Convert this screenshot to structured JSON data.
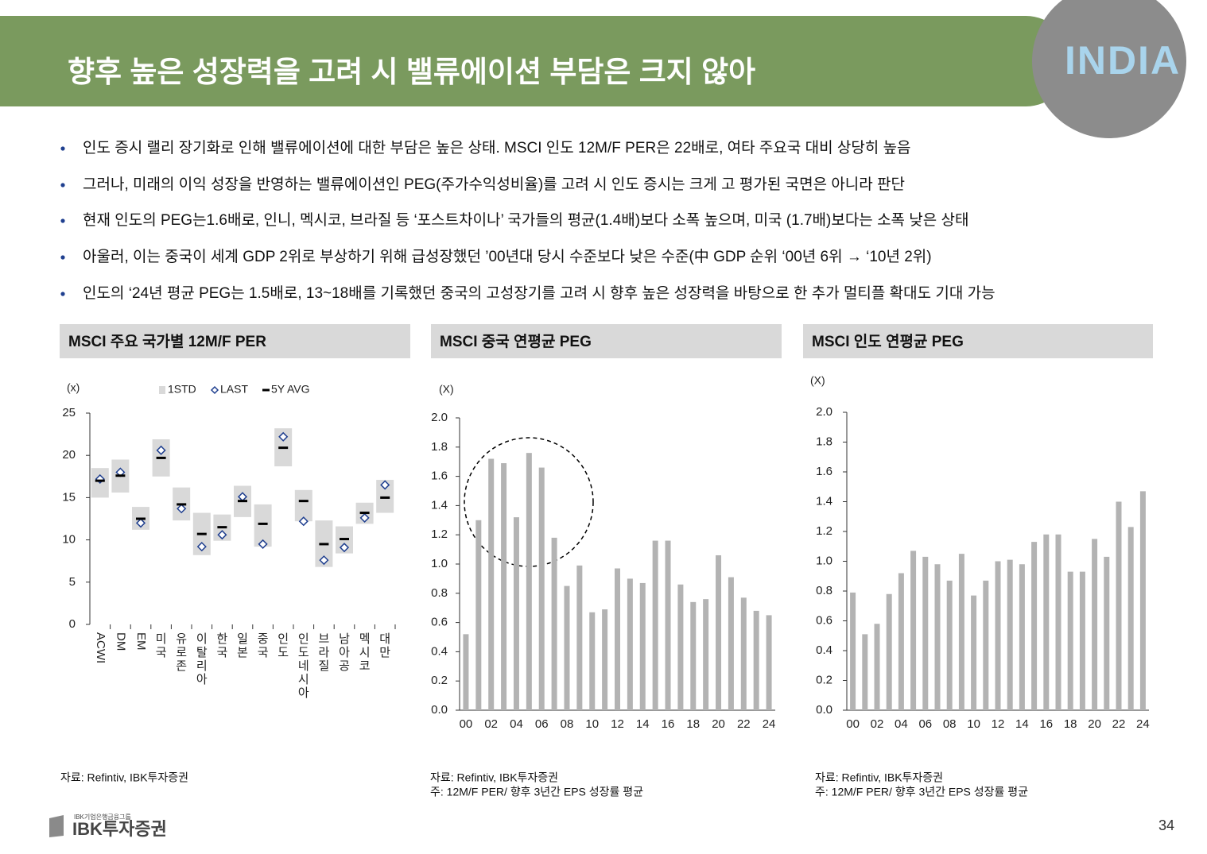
{
  "header": {
    "title": "향후 높은 성장력을 고려 시 밸류에이션 부담은 크지 않아",
    "badge": "INDIA"
  },
  "bullets": [
    "인도 증시 랠리 장기화로 인해 밸류에이션에 대한 부담은 높은 상태. MSCI 인도 12M/F PER은 22배로, 여타 주요국 대비 상당히 높음",
    "그러나, 미래의 이익 성장을 반영하는 밸류에이션인 PEG(주가수익성비율)를 고려 시 인도 증시는 크게 고 평가된 국면은 아니라 판단",
    "현재 인도의 PEG는1.6배로,  인니, 멕시코, 브라질 등 ‘포스트차이나’ 국가들의 평균(1.4배)보다 소폭 높으며, 미국 (1.7배)보다는 소폭 낮은 상태",
    "아울러, 이는 중국이 세계 GDP 2위로 부상하기 위해 급성장했던 ’00년대 당시 수준보다 낮은 수준(中 GDP 순위 ‘00년 6위 → ‘10년 2위)",
    "인도의 ‘24년 평균 PEG는 1.5배로, 13~18배를 기록했던 중국의 고성장기를 고려 시 향후 높은 성장력을 바탕으로 한 추가 멀티플 확대도 기대 가능"
  ],
  "chart_data": [
    {
      "type": "range",
      "title": "MSCI 주요 국가별 12M/F PER",
      "ylabel": "(x)",
      "source": "자료: Refintiv, IBK투자증권",
      "categories": [
        "ACWI",
        "DM",
        "EM",
        "미국",
        "유로존",
        "이탈리아",
        "한국",
        "일본",
        "중국",
        "인도",
        "인도네시아",
        "브라질",
        "남아공",
        "멕시코",
        "대만"
      ],
      "series": [
        {
          "name": "1STD",
          "color": "#d9d9d9",
          "marker": "box",
          "values": [
            [
              15.0,
              18.5
            ],
            [
              15.6,
              19.5
            ],
            [
              11.2,
              13.9
            ],
            [
              17.5,
              21.9
            ],
            [
              12.3,
              16.2
            ],
            [
              8.2,
              13.2
            ],
            [
              9.9,
              13.0
            ],
            [
              12.7,
              16.4
            ],
            [
              9.2,
              14.2
            ],
            [
              18.7,
              23.2
            ],
            [
              12.2,
              15.9
            ],
            [
              6.8,
              12.3
            ],
            [
              8.4,
              11.6
            ],
            [
              11.9,
              14.4
            ],
            [
              13.2,
              17.1
            ]
          ]
        },
        {
          "name": "LAST",
          "color": "#1f3f8f",
          "marker": "diamond",
          "values": [
            17.2,
            18.0,
            12.0,
            20.6,
            13.7,
            9.2,
            10.6,
            15.1,
            9.5,
            22.2,
            12.2,
            7.6,
            9.1,
            12.6,
            16.5
          ]
        },
        {
          "name": "5Y AVG",
          "color": "#000000",
          "marker": "dash",
          "values": [
            17.0,
            17.6,
            12.5,
            19.7,
            14.2,
            10.7,
            11.5,
            14.6,
            11.9,
            20.9,
            14.6,
            9.5,
            10.1,
            13.2,
            15.0
          ]
        }
      ],
      "ylim": [
        0,
        25
      ],
      "yticks": [
        0,
        5,
        10,
        15,
        20,
        25
      ]
    },
    {
      "type": "bar",
      "title": "MSCI 중국 연평균 PEG",
      "ylabel": "(X)",
      "source": "자료: Refintiv, IBK투자증권",
      "note": "주: 12M/F PER/ 향후 3년간 EPS 성장률 평균",
      "color": "#b3b3b3",
      "categories": [
        "00",
        null,
        "02",
        null,
        "04",
        null,
        "06",
        null,
        "08",
        null,
        "10",
        null,
        "12",
        null,
        "14",
        null,
        "16",
        null,
        "18",
        null,
        "20",
        null,
        "22",
        null,
        "24"
      ],
      "values": [
        0.52,
        1.3,
        1.72,
        1.69,
        1.32,
        1.76,
        1.66,
        1.18,
        0.85,
        0.99,
        0.67,
        0.69,
        0.97,
        0.9,
        0.87,
        1.16,
        1.16,
        0.86,
        0.74,
        0.76,
        1.06,
        0.91,
        0.77,
        0.68,
        0.65
      ],
      "ylim": [
        0,
        2
      ],
      "yticks": [
        {
          "value": 0,
          "label": "0.0"
        },
        0.2,
        0.4,
        0.6,
        0.8,
        {
          "value": 1,
          "label": "1.0"
        },
        1.2,
        1.4,
        1.6,
        1.8,
        {
          "value": 2,
          "label": "2.0"
        }
      ]
    },
    {
      "type": "bar",
      "title": "MSCI 인도 연평균 PEG",
      "ylabel": "(X)",
      "source": "자료: Refintiv, IBK투자증권",
      "note": "주: 12M/F PER/ 향후 3년간 EPS 성장률 평균",
      "color": "#b3b3b3",
      "categories": [
        "00",
        null,
        "02",
        null,
        "04",
        null,
        "06",
        null,
        "08",
        null,
        "10",
        null,
        "12",
        null,
        "14",
        null,
        "16",
        null,
        "18",
        null,
        "20",
        null,
        "22",
        null,
        "24"
      ],
      "values": [
        0.79,
        0.51,
        0.58,
        0.78,
        0.92,
        1.07,
        1.03,
        0.98,
        0.87,
        1.05,
        0.77,
        0.87,
        1.0,
        1.01,
        0.98,
        1.13,
        1.18,
        1.18,
        0.93,
        0.93,
        1.15,
        1.03,
        1.4,
        1.23,
        1.47
      ],
      "ylim": [
        0,
        2
      ],
      "yticks": [
        {
          "value": 0,
          "label": "0.0"
        },
        0.2,
        0.4,
        0.6,
        0.8,
        {
          "value": 1,
          "label": "1.0"
        },
        1.2,
        1.4,
        1.6,
        1.8,
        {
          "value": 2,
          "label": "2.0"
        }
      ]
    }
  ],
  "footer": {
    "group": "IBK기업은행금융그룹",
    "logo": "IBK투자증권",
    "page": "34"
  }
}
